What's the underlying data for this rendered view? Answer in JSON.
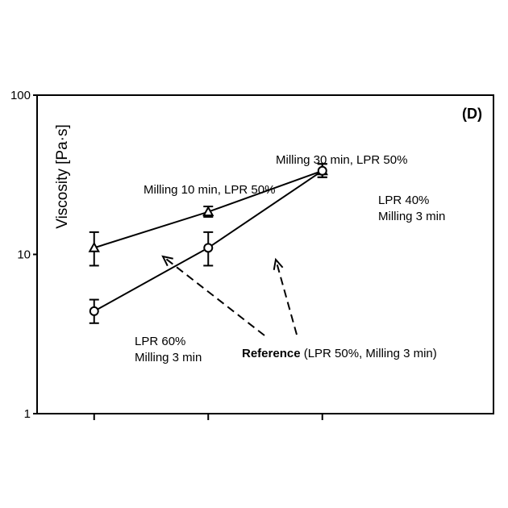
{
  "chart_data": {
    "type": "line",
    "panel_label": "(D)",
    "title": "",
    "xlabel": "",
    "ylabel": "Viscosity [Pa·s]",
    "yscale": "log",
    "ylim": [
      1,
      100
    ],
    "yticks": [
      "1",
      "10",
      "100"
    ],
    "xlim": [
      0.5,
      4.5
    ],
    "xticks": [
      1,
      2,
      3
    ],
    "grid": false,
    "series": [
      {
        "marker": "triangle",
        "x": [
          1,
          2,
          3
        ],
        "y": [
          11.0,
          18.5,
          33.5
        ],
        "err_low": [
          2.5,
          1.3,
          3.0
        ],
        "err_high": [
          2.8,
          1.5,
          3.5
        ]
      },
      {
        "marker": "circle",
        "x": [
          1,
          2,
          3
        ],
        "y": [
          4.4,
          11.0,
          33.5
        ],
        "err_low": [
          0.7,
          2.5,
          3.0
        ],
        "err_high": [
          0.8,
          2.8,
          3.5
        ]
      }
    ],
    "annotations": {
      "milling_10": "Milling 10 min, LPR 50%",
      "milling_30": "Milling 30 min, LPR 50%",
      "lpr40_line1": "LPR 40%",
      "lpr40_line2": "Milling 3 min",
      "lpr60_line1": "LPR 60%",
      "lpr60_line2": "Milling 3 min",
      "reference_bold": "Reference",
      "reference_rest": " (LPR 50%, Milling 3 min)"
    }
  }
}
